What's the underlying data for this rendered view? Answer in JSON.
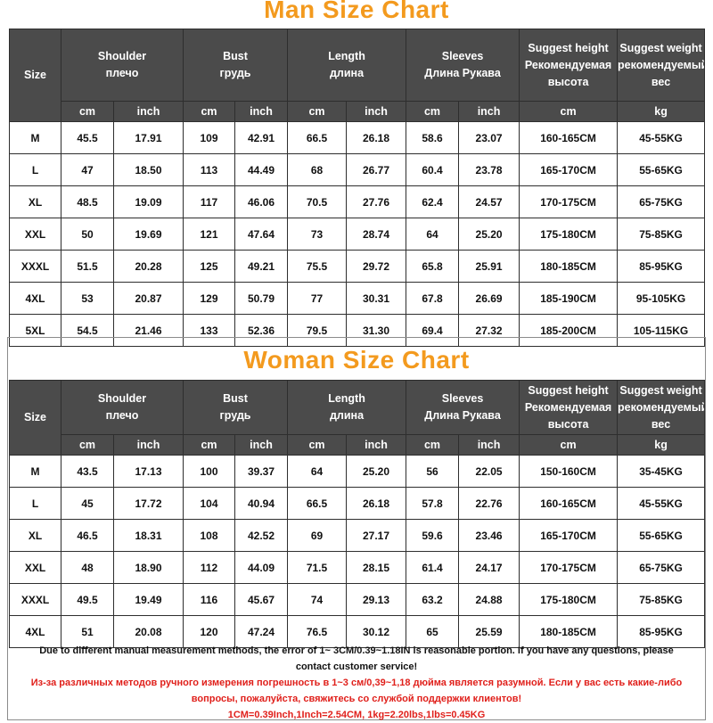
{
  "colors": {
    "title": "#f39a1e",
    "header_bg": "#4b4b4b",
    "header_text": "#ffffff",
    "warning_text": "#e0201b"
  },
  "man": {
    "title": "Man Size Chart",
    "headers": {
      "size": "Size",
      "shoulder_en": "Shoulder",
      "shoulder_ru": "плечо",
      "bust_en": "Bust",
      "bust_ru": "грудь",
      "length_en": "Length",
      "length_ru": "длина",
      "sleeves_en": "Sleeves",
      "sleeves_ru": "Длина Рукава",
      "height_l1": "Suggest height",
      "height_l2": "Рекомендуемая",
      "height_l3": "высота",
      "weight_l1": "Suggest weight",
      "weight_l2": "рекомендуемый",
      "weight_l3": "вес"
    },
    "units": [
      "cm",
      "inch",
      "cm",
      "inch",
      "cm",
      "inch",
      "cm",
      "inch",
      "cm",
      "kg"
    ],
    "rows": [
      [
        "M",
        "45.5",
        "17.91",
        "109",
        "42.91",
        "66.5",
        "26.18",
        "58.6",
        "23.07",
        "160-165CM",
        "45-55KG"
      ],
      [
        "L",
        "47",
        "18.50",
        "113",
        "44.49",
        "68",
        "26.77",
        "60.4",
        "23.78",
        "165-170CM",
        "55-65KG"
      ],
      [
        "XL",
        "48.5",
        "19.09",
        "117",
        "46.06",
        "70.5",
        "27.76",
        "62.4",
        "24.57",
        "170-175CM",
        "65-75KG"
      ],
      [
        "XXL",
        "50",
        "19.69",
        "121",
        "47.64",
        "73",
        "28.74",
        "64",
        "25.20",
        "175-180CM",
        "75-85KG"
      ],
      [
        "XXXL",
        "51.5",
        "20.28",
        "125",
        "49.21",
        "75.5",
        "29.72",
        "65.8",
        "25.91",
        "180-185CM",
        "85-95KG"
      ],
      [
        "4XL",
        "53",
        "20.87",
        "129",
        "50.79",
        "77",
        "30.31",
        "67.8",
        "26.69",
        "185-190CM",
        "95-105KG"
      ],
      [
        "5XL",
        "54.5",
        "21.46",
        "133",
        "52.36",
        "79.5",
        "31.30",
        "69.4",
        "27.32",
        "185-200CM",
        "105-115KG"
      ]
    ]
  },
  "woman": {
    "title": "Woman Size Chart",
    "headers": {
      "size": "Size",
      "shoulder_en": "Shoulder",
      "shoulder_ru": "плечо",
      "bust_en": "Bust",
      "bust_ru": "грудь",
      "length_en": "Length",
      "length_ru": "длина",
      "sleeves_en": "Sleeves",
      "sleeves_ru": "Длина Рукава",
      "height_l1": "Suggest height",
      "height_l2": "Рекомендуемая",
      "height_l3": "высота",
      "weight_l1": "Suggest weight",
      "weight_l2": "рекомендуемый",
      "weight_l3": "вес"
    },
    "units": [
      "cm",
      "inch",
      "cm",
      "inch",
      "cm",
      "inch",
      "cm",
      "inch",
      "cm",
      "kg"
    ],
    "rows": [
      [
        "M",
        "43.5",
        "17.13",
        "100",
        "39.37",
        "64",
        "25.20",
        "56",
        "22.05",
        "150-160CM",
        "35-45KG"
      ],
      [
        "L",
        "45",
        "17.72",
        "104",
        "40.94",
        "66.5",
        "26.18",
        "57.8",
        "22.76",
        "160-165CM",
        "45-55KG"
      ],
      [
        "XL",
        "46.5",
        "18.31",
        "108",
        "42.52",
        "69",
        "27.17",
        "59.6",
        "23.46",
        "165-170CM",
        "55-65KG"
      ],
      [
        "XXL",
        "48",
        "18.90",
        "112",
        "44.09",
        "71.5",
        "28.15",
        "61.4",
        "24.17",
        "170-175CM",
        "65-75KG"
      ],
      [
        "XXXL",
        "49.5",
        "19.49",
        "116",
        "45.67",
        "74",
        "29.13",
        "63.2",
        "24.88",
        "175-180CM",
        "75-85KG"
      ],
      [
        "4XL",
        "51",
        "20.08",
        "120",
        "47.24",
        "76.5",
        "30.12",
        "65",
        "25.59",
        "180-185CM",
        "85-95KG"
      ]
    ]
  },
  "notes": {
    "en_line1": "Due to different manual measurement methods, the error of 1~ 3CM/0.39~1.18IN is reasonable portion. If you have any questions, please",
    "en_line2": "contact customer service!",
    "ru_line1": "Из-за различных методов ручного измерения погрешность в 1~3 см/0,39~1,18 дюйма является разумной. Если у вас есть какие-либо",
    "ru_line2": "вопросы, пожалуйста, свяжитесь со службой поддержки клиентов!",
    "conversion": "1CM=0.39Inch,1Inch=2.54CM, 1kg=2.20lbs,1lbs=0.45KG"
  }
}
